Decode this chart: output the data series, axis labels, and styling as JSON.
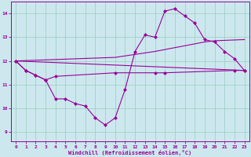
{
  "bg_color": "#cce8ee",
  "grid_color": "#99ccbb",
  "line_color": "#990099",
  "xlabel": "Windchill (Refroidissement éolien,°C)",
  "ylim": [
    8.6,
    14.5
  ],
  "xlim": [
    -0.5,
    23.5
  ],
  "yticks": [
    9,
    10,
    11,
    12,
    13,
    14
  ],
  "xticks": [
    0,
    1,
    2,
    3,
    4,
    5,
    6,
    7,
    8,
    9,
    10,
    11,
    12,
    13,
    14,
    15,
    16,
    17,
    18,
    19,
    20,
    21,
    22,
    23
  ],
  "curve1_x": [
    0,
    1,
    2,
    3,
    4,
    5,
    6,
    7,
    8,
    9,
    10,
    11,
    12,
    13,
    14,
    15,
    16,
    17,
    18,
    19,
    20,
    21,
    22,
    23
  ],
  "curve1_y": [
    12.0,
    11.6,
    11.4,
    11.2,
    10.4,
    10.4,
    10.2,
    10.1,
    9.6,
    9.3,
    9.6,
    10.8,
    12.4,
    13.1,
    13.0,
    14.1,
    14.2,
    13.9,
    13.6,
    12.9,
    12.8,
    12.4,
    12.1,
    11.6
  ],
  "curve2_x": [
    0,
    1,
    2,
    3,
    4,
    10,
    14,
    15,
    22,
    23
  ],
  "curve2_y": [
    12.0,
    11.6,
    11.4,
    11.2,
    11.35,
    11.5,
    11.5,
    11.5,
    11.6,
    11.6
  ],
  "curve3_x": [
    0,
    23
  ],
  "curve3_y": [
    12.0,
    11.6
  ],
  "curve4_x": [
    0,
    10,
    14,
    19,
    20,
    23
  ],
  "curve4_y": [
    12.0,
    12.15,
    12.4,
    12.8,
    12.85,
    12.9
  ]
}
